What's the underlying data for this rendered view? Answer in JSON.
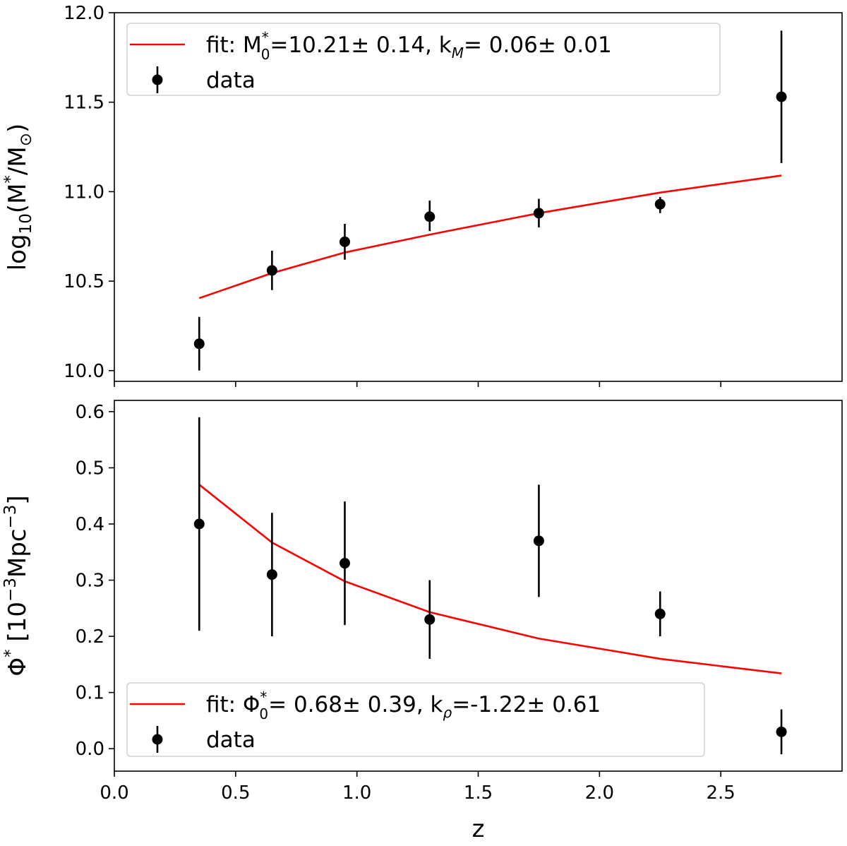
{
  "chart_data": [
    {
      "type": "scatter",
      "panel": "top",
      "xlabel": "",
      "ylabel": "log10(M*/M⊙)",
      "ylabel_parts": {
        "prefix": "log",
        "sub": "10",
        "open": "(M",
        "sup": "*",
        "mid": "/M",
        "sun": "⊙",
        "close": ")"
      },
      "xlim": [
        0.0,
        3.0
      ],
      "ylim": [
        9.94,
        12.0
      ],
      "yticks": [
        10.0,
        10.5,
        11.0,
        11.5,
        12.0
      ],
      "ytick_labels": [
        "10.0",
        "10.5",
        "11.0",
        "11.5",
        "12.0"
      ],
      "xticks": [
        0.0,
        0.5,
        1.0,
        1.5,
        2.0,
        2.5
      ],
      "show_xtick_labels": false,
      "legend_position": "top-left",
      "series": [
        {
          "name": "fit: M0*=10.21± 0.14, kM= 0.06± 0.01",
          "kind": "line",
          "color": "#ff0000",
          "legend_parts": [
            "fit: M",
            "*",
            "0",
            "=10.21± 0.14, k",
            "M",
            "= 0.06± 0.01"
          ],
          "x": [
            0.35,
            0.65,
            0.95,
            1.3,
            1.75,
            2.25,
            2.75
          ],
          "y": [
            10.405,
            10.545,
            10.66,
            10.76,
            10.88,
            10.995,
            11.09
          ]
        },
        {
          "name": "data",
          "kind": "errorbar",
          "color": "#000000",
          "x": [
            0.35,
            0.65,
            0.95,
            1.3,
            1.75,
            2.25,
            2.75
          ],
          "y": [
            10.15,
            10.56,
            10.72,
            10.86,
            10.88,
            10.93,
            11.53
          ],
          "err_low": [
            0.15,
            0.11,
            0.1,
            0.08,
            0.08,
            0.05,
            0.37
          ],
          "err_high": [
            0.15,
            0.11,
            0.1,
            0.09,
            0.08,
            0.04,
            0.37
          ]
        }
      ]
    },
    {
      "type": "scatter",
      "panel": "bottom",
      "xlabel": "z",
      "ylabel": "Φ* [10⁻³Mpc⁻³]",
      "ylabel_parts": {
        "phi": "Φ",
        "sup": "*",
        "open": " [10",
        "exp1": "−3",
        "unit": "Mpc",
        "exp2": "−3",
        "close": "]"
      },
      "xlim": [
        0.0,
        3.0
      ],
      "ylim": [
        -0.04,
        0.62
      ],
      "yticks": [
        0.0,
        0.1,
        0.2,
        0.3,
        0.4,
        0.5,
        0.6
      ],
      "ytick_labels": [
        "0.0",
        "0.1",
        "0.2",
        "0.3",
        "0.4",
        "0.5",
        "0.6"
      ],
      "xticks": [
        0.0,
        0.5,
        1.0,
        1.5,
        2.0,
        2.5
      ],
      "xtick_labels": [
        "0.0",
        "0.5",
        "1.0",
        "1.5",
        "2.0",
        "2.5"
      ],
      "legend_position": "bottom-left",
      "series": [
        {
          "name": "fit: Φ0*= 0.68± 0.39, kρ=-1.22± 0.61",
          "kind": "line",
          "color": "#ff0000",
          "legend_parts": [
            "fit: Φ",
            "*",
            "0",
            "= 0.68± 0.39, k",
            "ρ",
            "=-1.22± 0.61"
          ],
          "x": [
            0.35,
            0.65,
            0.95,
            1.3,
            1.75,
            2.25,
            2.75
          ],
          "y": [
            0.47,
            0.367,
            0.298,
            0.243,
            0.196,
            0.16,
            0.134
          ]
        },
        {
          "name": "data",
          "kind": "errorbar",
          "color": "#000000",
          "x": [
            0.35,
            0.65,
            0.95,
            1.3,
            1.75,
            2.25,
            2.75
          ],
          "y": [
            0.4,
            0.31,
            0.33,
            0.23,
            0.37,
            0.24,
            0.03
          ],
          "err_low": [
            0.19,
            0.11,
            0.11,
            0.07,
            0.1,
            0.04,
            0.04
          ],
          "err_high": [
            0.19,
            0.11,
            0.11,
            0.07,
            0.1,
            0.04,
            0.04
          ]
        }
      ]
    }
  ]
}
